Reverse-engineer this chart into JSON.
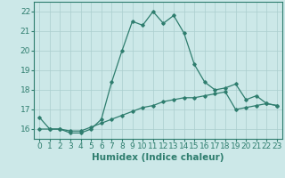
{
  "title": "",
  "xlabel": "Humidex (Indice chaleur)",
  "ylabel": "",
  "x": [
    0,
    1,
    2,
    3,
    4,
    5,
    6,
    7,
    8,
    9,
    10,
    11,
    12,
    13,
    14,
    15,
    16,
    17,
    18,
    19,
    20,
    21,
    22,
    23
  ],
  "line1_y": [
    16.6,
    16.0,
    16.0,
    15.8,
    15.8,
    16.0,
    16.5,
    18.4,
    20.0,
    21.5,
    21.3,
    22.0,
    21.4,
    21.8,
    20.9,
    19.3,
    18.4,
    18.0,
    18.1,
    18.3,
    17.5,
    17.7,
    17.3,
    17.2
  ],
  "line2_y": [
    16.0,
    16.0,
    16.0,
    15.9,
    15.9,
    16.1,
    16.3,
    16.5,
    16.7,
    16.9,
    17.1,
    17.2,
    17.4,
    17.5,
    17.6,
    17.6,
    17.7,
    17.8,
    17.9,
    17.0,
    17.1,
    17.2,
    17.3,
    17.2
  ],
  "xlim": [
    -0.5,
    23.5
  ],
  "ylim": [
    15.5,
    22.5
  ],
  "yticks": [
    16,
    17,
    18,
    19,
    20,
    21,
    22
  ],
  "xticks": [
    0,
    1,
    2,
    3,
    4,
    5,
    6,
    7,
    8,
    9,
    10,
    11,
    12,
    13,
    14,
    15,
    16,
    17,
    18,
    19,
    20,
    21,
    22,
    23
  ],
  "line_color": "#2e7d6e",
  "bg_color": "#cce8e8",
  "grid_color": "#aacece",
  "tick_color": "#2e7d6e",
  "label_color": "#2e7d6e",
  "marker": "D",
  "marker_size": 1.8,
  "line_width": 0.9,
  "font_size": 6.5,
  "xlabel_fontsize": 7.5
}
